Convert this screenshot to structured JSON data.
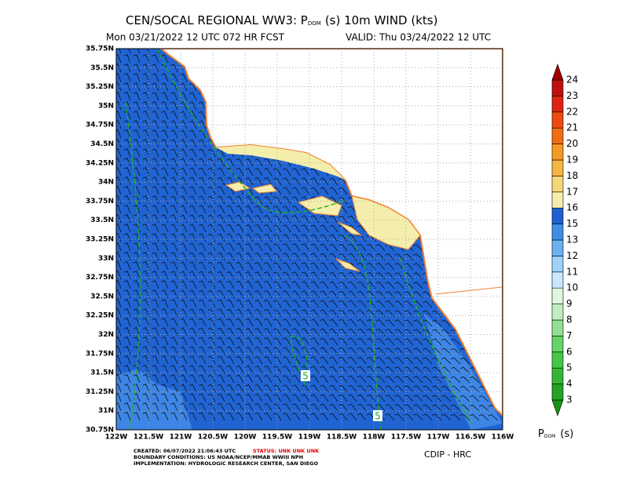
{
  "header": {
    "title_main": "CEN/SOCAL REGIONAL WW3: P",
    "title_sub": "DOM",
    "title_rest": "(s) 10m WIND (kts)",
    "run": "Mon 03/21/2022 12 UTC 072 HR FCST",
    "valid": "VALID: Thu 03/24/2022 12 UTC"
  },
  "map": {
    "lat_labels": [
      "35.75N",
      "35.5N",
      "35.25N",
      "35N",
      "34.75N",
      "34.5N",
      "34.25N",
      "34N",
      "33.75N",
      "33.5N",
      "33.25N",
      "33N",
      "32.75N",
      "32.5N",
      "32.25N",
      "32N",
      "31.75N",
      "31.5N",
      "31.25N",
      "31N",
      "30.75N"
    ],
    "lon_labels": [
      "122W",
      "121.5W",
      "121W",
      "120.5W",
      "120W",
      "119.5W",
      "119W",
      "118.5W",
      "118W",
      "117.5W",
      "117W",
      "116.5W",
      "116W"
    ],
    "contour_labels": [
      "5",
      "5"
    ]
  },
  "colorbar": {
    "labels": [
      3,
      4,
      5,
      6,
      7,
      8,
      9,
      10,
      11,
      12,
      13,
      15,
      16,
      17,
      18,
      19,
      20,
      21,
      22,
      23,
      24
    ],
    "colors": [
      "#179417",
      "#22a322",
      "#34b834",
      "#45c845",
      "#66d466",
      "#93e093",
      "#bfeebf",
      "#dff6df",
      "#c9e8ff",
      "#9ed2fb",
      "#6cb2f2",
      "#3f8ee6",
      "#1f60d0",
      "#f4eeac",
      "#f6d67a",
      "#f6b642",
      "#f59a22",
      "#f26c14",
      "#ec4a10",
      "#dc2410",
      "#bf1010",
      "#a00000"
    ],
    "label_main": "P",
    "label_sub": "DOM",
    "label_rest": "(s)"
  },
  "footer": {
    "created": "CREATED: 06/07/2022 21:06:43 UTC",
    "status": "STATUS: UNK UNK UNK",
    "boundary": "BOUNDARY CONDITIONS: US NOAA/NCEP/MMAB WWIII NPH",
    "implementation": "IMPLEMENTATION: HYDROLOGIC RESEARCH CENTER, SAN DIEGO",
    "credit": "CDIP - HRC"
  }
}
